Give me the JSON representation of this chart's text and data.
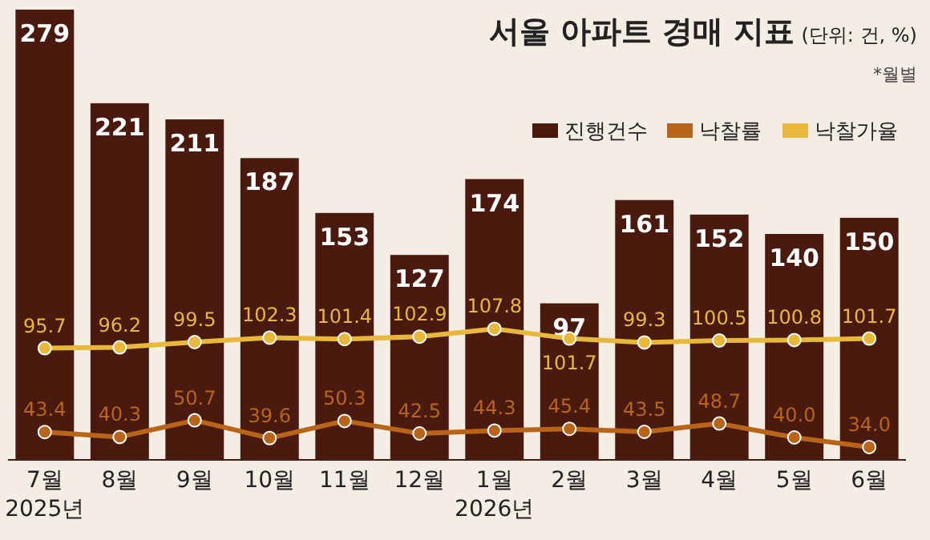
{
  "chart_data": {
    "type": "bar",
    "title": "서울 아파트 경매 지표",
    "subtitle": "(단위: 건, %)",
    "annotations": [
      "*월별"
    ],
    "categories": [
      "7월\n2025년",
      "8월",
      "9월",
      "10월",
      "11월",
      "12월",
      "1월\n2026년",
      "2월",
      "3월",
      "4월",
      "5월",
      "6월"
    ],
    "ylim": [
      0,
      280
    ],
    "y2lim": [
      26,
      308
    ],
    "data_labels": true,
    "legend": "top right",
    "marker": "circle",
    "line_style": "solid",
    "grid": false,
    "series": [
      {
        "name": "진행건수",
        "color": "#4a1a0e",
        "values": [
          279,
          221,
          211,
          187,
          153,
          127,
          174,
          97,
          161,
          152,
          140,
          150
        ]
      },
      {
        "name": "낙찰률",
        "type": "line",
        "axis": "y2",
        "color": "#b8651a",
        "values": [
          43.4,
          40.3,
          50.7,
          39.6,
          50.3,
          42.5,
          44.3,
          45.4,
          43.5,
          48.7,
          40.0,
          34.0
        ],
        "value_labels": [
          "43.4",
          "40.3",
          "50.7",
          "39.6",
          "50.3",
          "42.5",
          "44.3",
          "45.4",
          "43.5",
          "48.7",
          "40.0",
          "34.0"
        ]
      },
      {
        "name": "낙찰가율",
        "type": "line",
        "axis": "y2",
        "color": "#e8b83a",
        "values": [
          95.7,
          96.2,
          99.5,
          102.3,
          101.4,
          102.9,
          107.8,
          101.7,
          99.3,
          100.5,
          100.8,
          101.7
        ]
      }
    ]
  }
}
